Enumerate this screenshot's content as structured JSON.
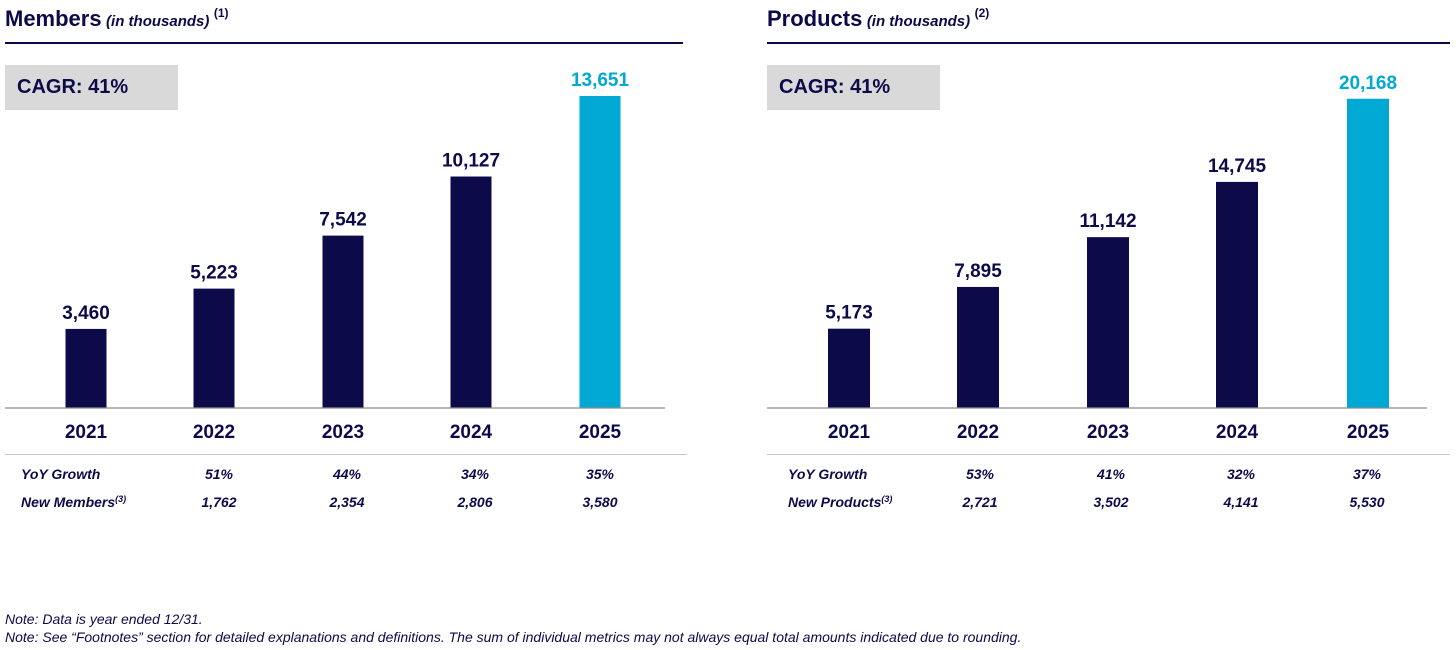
{
  "colors": {
    "navy": "#0d0a4a",
    "highlight": "#00a9d4",
    "cagr_bg": "#d9d9d9"
  },
  "panels": [
    {
      "title": "Members",
      "unit": "(in thousands)",
      "footnote_ref": "(1)",
      "cagr": "CAGR: 41%",
      "metrics": [
        {
          "label": "YoY Growth",
          "sup": "",
          "values": [
            "51%",
            "44%",
            "34%",
            "35%"
          ]
        },
        {
          "label": "New Members",
          "sup": "(3)",
          "values": [
            "1,762",
            "2,354",
            "2,806",
            "3,580"
          ]
        }
      ]
    },
    {
      "title": "Products",
      "unit": "(in thousands)",
      "footnote_ref": "(2)",
      "cagr": "CAGR: 41%",
      "metrics": [
        {
          "label": "YoY Growth",
          "sup": "",
          "values": [
            "53%",
            "41%",
            "32%",
            "37%"
          ]
        },
        {
          "label": "New Products",
          "sup": "(3)",
          "values": [
            "2,721",
            "3,502",
            "4,141",
            "5,530"
          ]
        }
      ]
    }
  ],
  "chart_data": [
    {
      "type": "bar",
      "title": "Members (in thousands)",
      "categories": [
        "2021",
        "2022",
        "2023",
        "2024",
        "2025"
      ],
      "values": [
        3460,
        5223,
        7542,
        10127,
        13651
      ],
      "value_labels": [
        "3,460",
        "5,223",
        "7,542",
        "10,127",
        "13,651"
      ],
      "highlight_index": 4,
      "ylim": [
        0,
        14000
      ]
    },
    {
      "type": "bar",
      "title": "Products (in thousands)",
      "categories": [
        "2021",
        "2022",
        "2023",
        "2024",
        "2025"
      ],
      "values": [
        5173,
        7895,
        11142,
        14745,
        20168
      ],
      "value_labels": [
        "5,173",
        "7,895",
        "11,142",
        "14,745",
        "20,168"
      ],
      "highlight_index": 4,
      "ylim": [
        0,
        21000
      ]
    }
  ],
  "notes": [
    "Note: Data is year ended 12/31.",
    "Note: See “Footnotes” section for detailed explanations and definitions. The sum of individual metrics may not always equal total amounts indicated due to rounding."
  ]
}
